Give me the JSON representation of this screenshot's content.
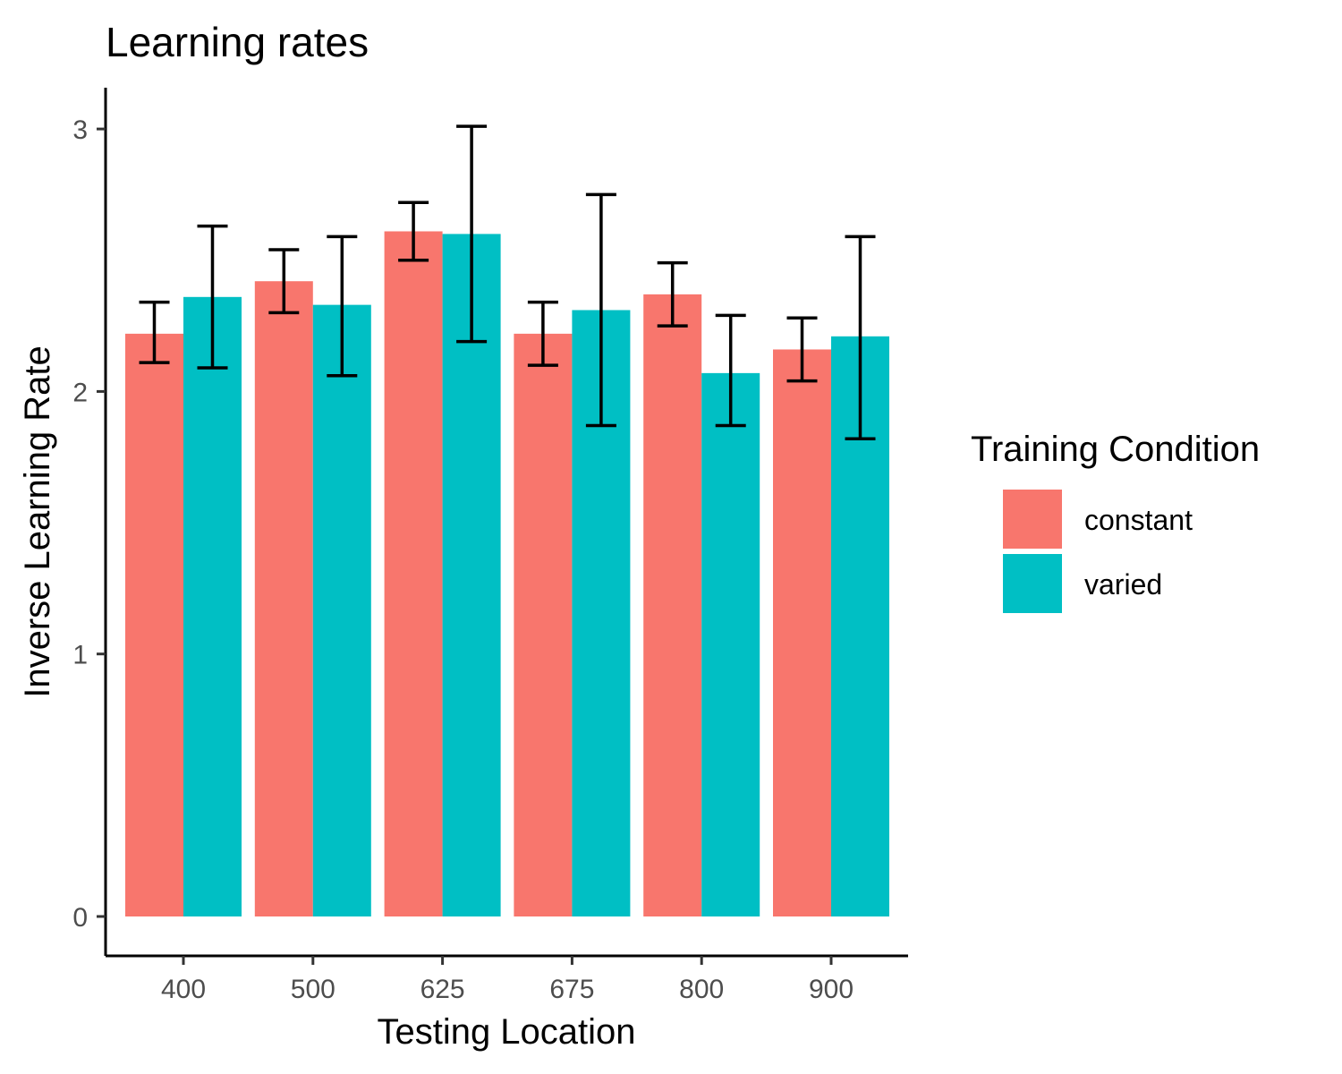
{
  "chart_data": {
    "type": "bar",
    "title": "Learning rates",
    "xlabel": "Testing Location",
    "ylabel": "Inverse Learning Rate",
    "categories": [
      "400",
      "500",
      "625",
      "675",
      "800",
      "900"
    ],
    "ylim": [
      -0.15,
      3.15
    ],
    "yticks": [
      0,
      1,
      2,
      3
    ],
    "grid": false,
    "legend": {
      "title": "Training Condition",
      "position": "right"
    },
    "series": [
      {
        "name": "constant",
        "color": "#F8766D",
        "values": [
          2.22,
          2.42,
          2.61,
          2.22,
          2.37,
          2.16
        ],
        "error_low": [
          2.11,
          2.3,
          2.5,
          2.1,
          2.25,
          2.04
        ],
        "error_high": [
          2.34,
          2.54,
          2.72,
          2.34,
          2.49,
          2.28
        ]
      },
      {
        "name": "varied",
        "color": "#00BFC4",
        "values": [
          2.36,
          2.33,
          2.6,
          2.31,
          2.07,
          2.21
        ],
        "error_low": [
          2.09,
          2.06,
          2.19,
          1.87,
          1.87,
          1.82
        ],
        "error_high": [
          2.63,
          2.59,
          3.01,
          2.75,
          2.29,
          2.59
        ]
      }
    ]
  }
}
